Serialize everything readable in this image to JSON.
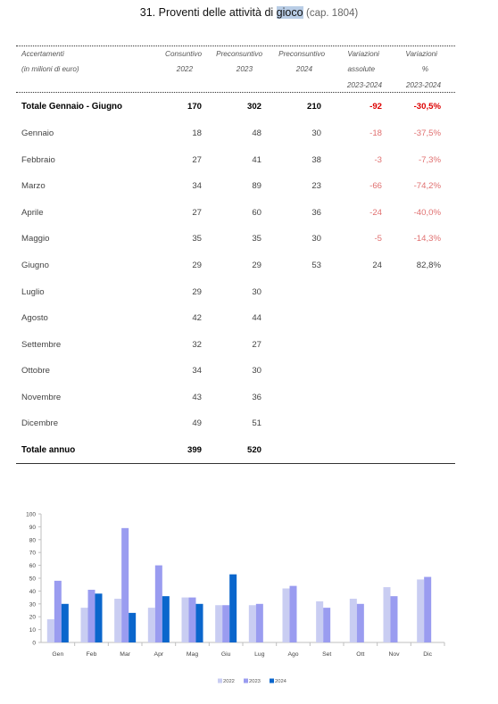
{
  "title": {
    "main_prefix": "31. Proventi delle attività di ",
    "main_highlight": "gioco",
    "sub": "(cap. 1804)"
  },
  "header": {
    "label_line1": "Accertamenti",
    "label_line2": "(in milioni di euro)",
    "col1_line1": "Consuntivo",
    "col1_line2": "2022",
    "col2_line1": "Preconsuntivo",
    "col2_line2": "2023",
    "col3_line1": "Preconsuntivo",
    "col3_line2": "2024",
    "col4_line1": "Variazioni",
    "col4_line2": "assolute",
    "col4_line3": "2023-2024",
    "col5_line1": "Variazioni",
    "col5_line2": "%",
    "col5_line3": "2023-2024"
  },
  "rows": [
    {
      "label": "Totale Gennaio - Giugno",
      "c1": "170",
      "c2": "302",
      "c3": "210",
      "c4": "-92",
      "c5": "-30,5%",
      "total": true
    },
    {
      "label": "Gennaio",
      "c1": "18",
      "c2": "48",
      "c3": "30",
      "c4": "-18",
      "c5": "-37,5%"
    },
    {
      "label": "Febbraio",
      "c1": "27",
      "c2": "41",
      "c3": "38",
      "c4": "-3",
      "c5": "-7,3%"
    },
    {
      "label": "Marzo",
      "c1": "34",
      "c2": "89",
      "c3": "23",
      "c4": "-66",
      "c5": "-74,2%"
    },
    {
      "label": "Aprile",
      "c1": "27",
      "c2": "60",
      "c3": "36",
      "c4": "-24",
      "c5": "-40,0%"
    },
    {
      "label": "Maggio",
      "c1": "35",
      "c2": "35",
      "c3": "30",
      "c4": "-5",
      "c5": "-14,3%"
    },
    {
      "label": "Giugno",
      "c1": "29",
      "c2": "29",
      "c3": "53",
      "c4": "24",
      "c5": "82,8%"
    },
    {
      "label": "Luglio",
      "c1": "29",
      "c2": "30",
      "c3": "",
      "c4": "",
      "c5": ""
    },
    {
      "label": "Agosto",
      "c1": "42",
      "c2": "44",
      "c3": "",
      "c4": "",
      "c5": ""
    },
    {
      "label": "Settembre",
      "c1": "32",
      "c2": "27",
      "c3": "",
      "c4": "",
      "c5": ""
    },
    {
      "label": "Ottobre",
      "c1": "34",
      "c2": "30",
      "c3": "",
      "c4": "",
      "c5": ""
    },
    {
      "label": "Novembre",
      "c1": "43",
      "c2": "36",
      "c3": "",
      "c4": "",
      "c5": ""
    },
    {
      "label": "Dicembre",
      "c1": "49",
      "c2": "51",
      "c3": "",
      "c4": "",
      "c5": ""
    },
    {
      "label": "Totale annuo",
      "c1": "399",
      "c2": "520",
      "c3": "",
      "c4": "",
      "c5": "",
      "total": true
    }
  ],
  "colors": {
    "negative": "#e07070",
    "negative_total": "#dd0000",
    "s2022": "#c9cdf2",
    "s2023": "#9a9cf0",
    "s2024": "#0a66cc"
  },
  "chart_data": {
    "type": "bar",
    "categories": [
      "Gen",
      "Feb",
      "Mar",
      "Apr",
      "Mag",
      "Giu",
      "Lug",
      "Ago",
      "Set",
      "Ott",
      "Nov",
      "Dic"
    ],
    "series": [
      {
        "name": "2022",
        "values": [
          18,
          27,
          34,
          27,
          35,
          29,
          29,
          42,
          32,
          34,
          43,
          49
        ]
      },
      {
        "name": "2023",
        "values": [
          48,
          41,
          89,
          60,
          35,
          29,
          30,
          44,
          27,
          30,
          36,
          51
        ]
      },
      {
        "name": "2024",
        "values": [
          30,
          38,
          23,
          36,
          30,
          53,
          null,
          null,
          null,
          null,
          null,
          null
        ]
      }
    ],
    "yticks": [
      "0",
      "10",
      "20",
      "30",
      "40",
      "50",
      "60",
      "70",
      "80",
      "90",
      "100"
    ],
    "ylim": [
      0,
      100
    ],
    "grid": false,
    "legend": "bottom"
  }
}
